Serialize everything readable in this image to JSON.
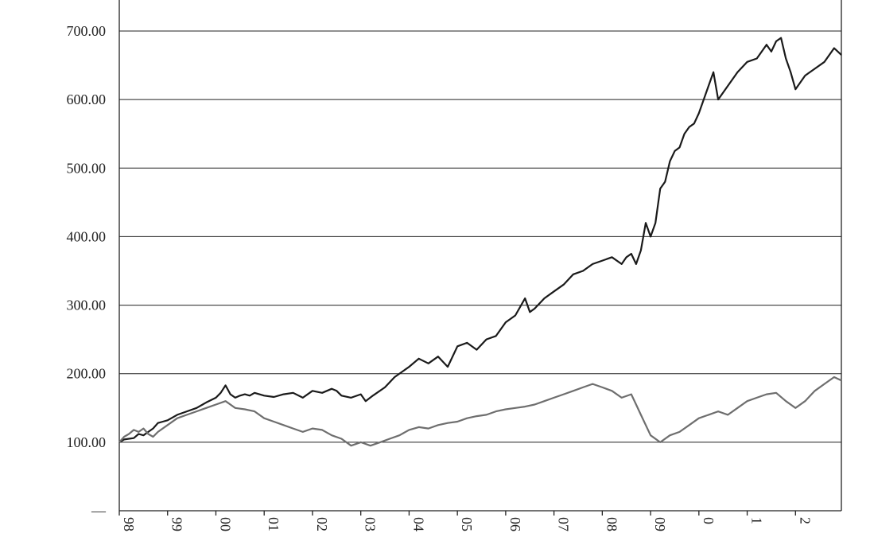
{
  "chart_data": {
    "type": "line",
    "title": "",
    "xlabel": "",
    "ylabel": "",
    "ylim": [
      0,
      700
    ],
    "y_ticks": [
      {
        "value": 0,
        "label": "—"
      },
      {
        "value": 100,
        "label": "100.00"
      },
      {
        "value": 200,
        "label": "200.00"
      },
      {
        "value": 300,
        "label": "300.00"
      },
      {
        "value": 400,
        "label": "400.00"
      },
      {
        "value": 500,
        "label": "500.00"
      },
      {
        "value": 600,
        "label": "600.00"
      },
      {
        "value": 700,
        "label": "700.00"
      }
    ],
    "x_ticks": [
      {
        "value": 1998,
        "label": "98"
      },
      {
        "value": 1999,
        "label": "99"
      },
      {
        "value": 2000,
        "label": "00"
      },
      {
        "value": 2001,
        "label": "01"
      },
      {
        "value": 2002,
        "label": "02"
      },
      {
        "value": 2003,
        "label": "03"
      },
      {
        "value": 2004,
        "label": "04"
      },
      {
        "value": 2005,
        "label": "05"
      },
      {
        "value": 2006,
        "label": "06"
      },
      {
        "value": 2007,
        "label": "07"
      },
      {
        "value": 2008,
        "label": "08"
      },
      {
        "value": 2009,
        "label": "09"
      },
      {
        "value": 2010,
        "label": "0"
      },
      {
        "value": 2011,
        "label": "1"
      },
      {
        "value": 2012,
        "label": "2"
      }
    ],
    "xlim": [
      1998,
      2012.95
    ],
    "grid": true,
    "legend": "none",
    "series": [
      {
        "color": "#1a1a1a",
        "x": [
          1998.0,
          1998.1,
          1998.2,
          1998.3,
          1998.4,
          1998.5,
          1998.6,
          1998.7,
          1998.8,
          1998.9,
          1999.0,
          1999.2,
          1999.4,
          1999.6,
          1999.8,
          2000.0,
          2000.1,
          2000.2,
          2000.3,
          2000.4,
          2000.5,
          2000.6,
          2000.7,
          2000.8,
          2001.0,
          2001.2,
          2001.4,
          2001.6,
          2001.8,
          2002.0,
          2002.2,
          2002.4,
          2002.5,
          2002.6,
          2002.8,
          2003.0,
          2003.1,
          2003.25,
          2003.5,
          2003.7,
          2004.0,
          2004.2,
          2004.4,
          2004.6,
          2004.8,
          2005.0,
          2005.2,
          2005.4,
          2005.6,
          2005.8,
          2006.0,
          2006.2,
          2006.4,
          2006.5,
          2006.6,
          2006.8,
          2007.0,
          2007.2,
          2007.4,
          2007.6,
          2007.8,
          2008.0,
          2008.2,
          2008.4,
          2008.5,
          2008.6,
          2008.7,
          2008.8,
          2008.9,
          2009.0,
          2009.1,
          2009.2,
          2009.3,
          2009.4,
          2009.5,
          2009.6,
          2009.7,
          2009.8,
          2009.9,
          2010.0,
          2010.1,
          2010.2,
          2010.3,
          2010.4,
          2010.5,
          2010.6,
          2010.8,
          2011.0,
          2011.2,
          2011.4,
          2011.5,
          2011.6,
          2011.7,
          2011.8,
          2011.9,
          2012.0,
          2012.2,
          2012.4,
          2012.6,
          2012.8,
          2012.95
        ],
        "values": [
          100,
          104,
          105,
          106,
          112,
          110,
          115,
          120,
          128,
          130,
          132,
          140,
          145,
          150,
          158,
          165,
          172,
          183,
          170,
          165,
          168,
          170,
          168,
          172,
          168,
          166,
          170,
          172,
          165,
          175,
          172,
          178,
          175,
          168,
          165,
          170,
          160,
          168,
          180,
          195,
          210,
          222,
          215,
          225,
          210,
          240,
          245,
          235,
          250,
          255,
          275,
          285,
          310,
          290,
          295,
          310,
          320,
          330,
          345,
          350,
          360,
          365,
          370,
          360,
          370,
          375,
          360,
          380,
          420,
          400,
          420,
          470,
          480,
          510,
          525,
          530,
          550,
          560,
          565,
          580,
          600,
          620,
          640,
          600,
          610,
          620,
          640,
          655,
          660,
          680,
          670,
          685,
          690,
          660,
          640,
          615,
          635,
          645,
          655,
          675,
          665
        ]
      },
      {
        "color": "#6e6e6e",
        "x": [
          1998.0,
          1998.1,
          1998.2,
          1998.3,
          1998.4,
          1998.5,
          1998.6,
          1998.7,
          1998.8,
          1999.0,
          1999.2,
          1999.4,
          1999.6,
          1999.8,
          2000.0,
          2000.2,
          2000.4,
          2000.6,
          2000.8,
          2001.0,
          2001.2,
          2001.4,
          2001.6,
          2001.8,
          2002.0,
          2002.2,
          2002.4,
          2002.6,
          2002.8,
          2003.0,
          2003.2,
          2003.4,
          2003.6,
          2003.8,
          2004.0,
          2004.2,
          2004.4,
          2004.6,
          2004.8,
          2005.0,
          2005.2,
          2005.4,
          2005.6,
          2005.8,
          2006.0,
          2006.2,
          2006.4,
          2006.6,
          2006.8,
          2007.0,
          2007.2,
          2007.4,
          2007.6,
          2007.8,
          2008.0,
          2008.2,
          2008.4,
          2008.6,
          2008.7,
          2008.8,
          2009.0,
          2009.2,
          2009.4,
          2009.6,
          2009.8,
          2010.0,
          2010.2,
          2010.4,
          2010.6,
          2010.8,
          2011.0,
          2011.2,
          2011.4,
          2011.6,
          2011.8,
          2012.0,
          2012.2,
          2012.4,
          2012.6,
          2012.8,
          2012.95
        ],
        "values": [
          100,
          108,
          112,
          118,
          115,
          120,
          112,
          108,
          115,
          125,
          135,
          140,
          145,
          150,
          155,
          160,
          150,
          148,
          145,
          135,
          130,
          125,
          120,
          115,
          120,
          118,
          110,
          105,
          95,
          100,
          95,
          100,
          105,
          110,
          118,
          122,
          120,
          125,
          128,
          130,
          135,
          138,
          140,
          145,
          148,
          150,
          152,
          155,
          160,
          165,
          170,
          175,
          180,
          185,
          180,
          175,
          165,
          170,
          155,
          140,
          110,
          100,
          110,
          115,
          125,
          135,
          140,
          145,
          140,
          150,
          160,
          165,
          170,
          172,
          160,
          150,
          160,
          175,
          185,
          195,
          190
        ]
      }
    ]
  }
}
